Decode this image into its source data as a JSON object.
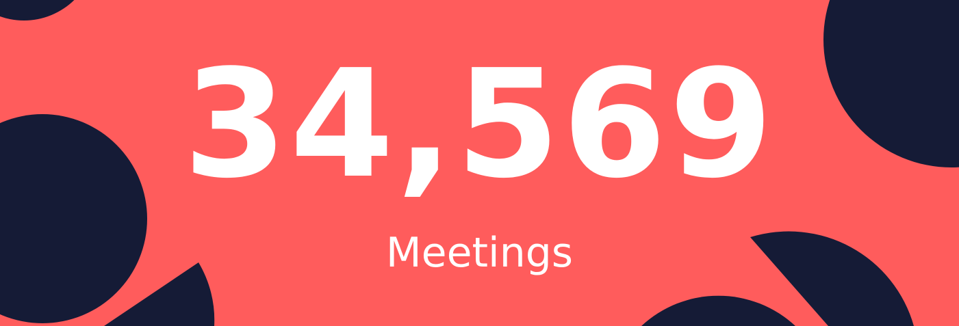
{
  "stat": {
    "value": "34,569",
    "label": "Meetings"
  },
  "colors": {
    "background": "#FF5C5C",
    "shape": "#151B36",
    "text": "#FFFFFF"
  }
}
